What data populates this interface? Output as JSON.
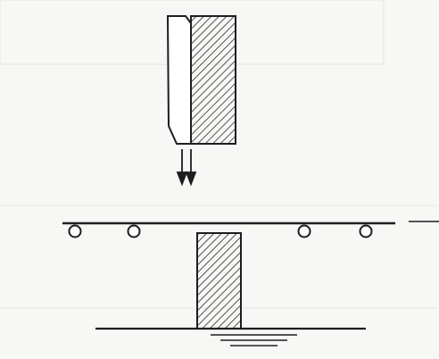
{
  "colors": {
    "background": "#f7f7f5",
    "stroke": "#1e1e1e",
    "hatch": "#2a2a2a",
    "fill_light": "#ffffff"
  },
  "elements": {
    "upper_blade": "hatched-blade-with-clamp",
    "motion": "double-down-arrow",
    "roller_track": "horizontal-rail-with-four-rollers",
    "lower_die": "hatched-vertical-block",
    "base": "ground-line-with-hatch-strokes"
  }
}
